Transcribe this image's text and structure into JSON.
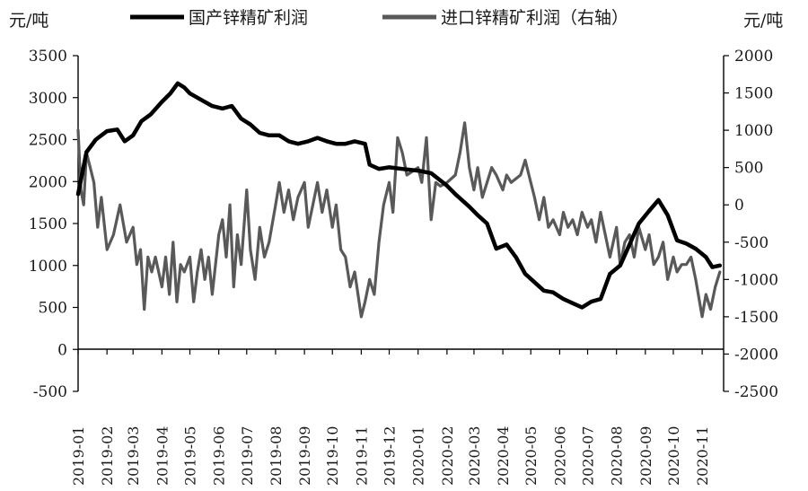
{
  "chart_data": {
    "type": "line",
    "title": "",
    "left_axis_unit": "元/吨",
    "right_axis_unit": "元/吨",
    "legend_position": "top",
    "grid": false,
    "colors": {
      "domestic": "#000000",
      "imported": "#595959",
      "axis": "#000000"
    },
    "y_left": {
      "min": -500,
      "max": 3500,
      "ticks": [
        "3500",
        "3000",
        "2500",
        "2000",
        "1500",
        "1000",
        "500",
        "0",
        "-500"
      ]
    },
    "y_right": {
      "min": -2500,
      "max": 2000,
      "ticks": [
        "2000",
        "1500",
        "1000",
        "500",
        "0",
        "-500",
        "-1000",
        "-1500",
        "-2000",
        "-2500"
      ]
    },
    "x_ticks": [
      "2019-01",
      "2019-02",
      "2019-03",
      "2019-04",
      "2019-05",
      "2019-06",
      "2019-07",
      "2019-08",
      "2019-09",
      "2019-10",
      "2019-11",
      "2019-12",
      "2020-01",
      "2020-02",
      "2020-03",
      "2020-04",
      "2020-05",
      "2020-06",
      "2020-07",
      "2020-08",
      "2020-09",
      "2020-10",
      "2020-11"
    ],
    "series": [
      {
        "name": "国产锌精矿利润",
        "axis": "left",
        "points": [
          [
            "2019-01-01",
            1850
          ],
          [
            "2019-01-10",
            2350
          ],
          [
            "2019-01-20",
            2500
          ],
          [
            "2019-02-01",
            2600
          ],
          [
            "2019-02-12",
            2620
          ],
          [
            "2019-02-20",
            2480
          ],
          [
            "2019-03-01",
            2550
          ],
          [
            "2019-03-10",
            2720
          ],
          [
            "2019-03-20",
            2800
          ],
          [
            "2019-04-01",
            2950
          ],
          [
            "2019-04-10",
            3050
          ],
          [
            "2019-04-18",
            3170
          ],
          [
            "2019-04-25",
            3120
          ],
          [
            "2019-05-01",
            3050
          ],
          [
            "2019-05-12",
            2980
          ],
          [
            "2019-05-25",
            2900
          ],
          [
            "2019-06-05",
            2870
          ],
          [
            "2019-06-15",
            2900
          ],
          [
            "2019-06-25",
            2750
          ],
          [
            "2019-07-05",
            2680
          ],
          [
            "2019-07-15",
            2580
          ],
          [
            "2019-07-25",
            2550
          ],
          [
            "2019-08-05",
            2550
          ],
          [
            "2019-08-15",
            2480
          ],
          [
            "2019-08-25",
            2450
          ],
          [
            "2019-09-05",
            2480
          ],
          [
            "2019-09-15",
            2520
          ],
          [
            "2019-09-25",
            2480
          ],
          [
            "2019-10-05",
            2450
          ],
          [
            "2019-10-15",
            2450
          ],
          [
            "2019-10-25",
            2480
          ],
          [
            "2019-11-05",
            2450
          ],
          [
            "2019-11-10",
            2200
          ],
          [
            "2019-11-20",
            2150
          ],
          [
            "2019-12-01",
            2170
          ],
          [
            "2019-12-15",
            2150
          ],
          [
            "2020-01-01",
            2130
          ],
          [
            "2020-01-15",
            2100
          ],
          [
            "2020-02-01",
            1950
          ],
          [
            "2020-02-10",
            1850
          ],
          [
            "2020-02-25",
            1700
          ],
          [
            "2020-03-05",
            1600
          ],
          [
            "2020-03-15",
            1500
          ],
          [
            "2020-03-25",
            1200
          ],
          [
            "2020-04-05",
            1250
          ],
          [
            "2020-04-15",
            1100
          ],
          [
            "2020-04-25",
            900
          ],
          [
            "2020-05-05",
            800
          ],
          [
            "2020-05-15",
            700
          ],
          [
            "2020-05-25",
            680
          ],
          [
            "2020-06-05",
            600
          ],
          [
            "2020-06-15",
            550
          ],
          [
            "2020-06-25",
            500
          ],
          [
            "2020-07-05",
            570
          ],
          [
            "2020-07-15",
            600
          ],
          [
            "2020-07-25",
            900
          ],
          [
            "2020-08-05",
            1000
          ],
          [
            "2020-08-15",
            1250
          ],
          [
            "2020-08-25",
            1500
          ],
          [
            "2020-09-05",
            1650
          ],
          [
            "2020-09-15",
            1780
          ],
          [
            "2020-09-25",
            1600
          ],
          [
            "2020-10-05",
            1300
          ],
          [
            "2020-10-15",
            1260
          ],
          [
            "2020-10-25",
            1200
          ],
          [
            "2020-11-05",
            1100
          ],
          [
            "2020-11-12",
            980
          ],
          [
            "2020-11-20",
            1000
          ]
        ]
      },
      {
        "name": "进口锌精矿利润（右轴）",
        "axis": "right",
        "points": [
          [
            "2019-01-01",
            1000
          ],
          [
            "2019-01-04",
            200
          ],
          [
            "2019-01-07",
            0
          ],
          [
            "2019-01-10",
            700
          ],
          [
            "2019-01-14",
            500
          ],
          [
            "2019-01-18",
            300
          ],
          [
            "2019-01-22",
            -300
          ],
          [
            "2019-01-26",
            100
          ],
          [
            "2019-02-01",
            -600
          ],
          [
            "2019-02-08",
            -400
          ],
          [
            "2019-02-15",
            0
          ],
          [
            "2019-02-22",
            -500
          ],
          [
            "2019-03-01",
            -300
          ],
          [
            "2019-03-05",
            -800
          ],
          [
            "2019-03-09",
            -600
          ],
          [
            "2019-03-13",
            -1400
          ],
          [
            "2019-03-17",
            -700
          ],
          [
            "2019-03-21",
            -900
          ],
          [
            "2019-03-25",
            -700
          ],
          [
            "2019-04-01",
            -1100
          ],
          [
            "2019-04-05",
            -700
          ],
          [
            "2019-04-09",
            -1200
          ],
          [
            "2019-04-13",
            -500
          ],
          [
            "2019-04-17",
            -1300
          ],
          [
            "2019-04-21",
            -800
          ],
          [
            "2019-04-25",
            -900
          ],
          [
            "2019-05-01",
            -700
          ],
          [
            "2019-05-05",
            -1300
          ],
          [
            "2019-05-09",
            -900
          ],
          [
            "2019-05-13",
            -600
          ],
          [
            "2019-05-17",
            -1000
          ],
          [
            "2019-05-21",
            -700
          ],
          [
            "2019-05-25",
            -1200
          ],
          [
            "2019-06-01",
            -400
          ],
          [
            "2019-06-05",
            -200
          ],
          [
            "2019-06-09",
            -700
          ],
          [
            "2019-06-13",
            0
          ],
          [
            "2019-06-17",
            -1100
          ],
          [
            "2019-06-21",
            -400
          ],
          [
            "2019-06-25",
            -800
          ],
          [
            "2019-07-01",
            200
          ],
          [
            "2019-07-05",
            -600
          ],
          [
            "2019-07-10",
            -1000
          ],
          [
            "2019-07-15",
            -300
          ],
          [
            "2019-07-20",
            -700
          ],
          [
            "2019-07-25",
            -500
          ],
          [
            "2019-08-01",
            0
          ],
          [
            "2019-08-05",
            300
          ],
          [
            "2019-08-10",
            -100
          ],
          [
            "2019-08-15",
            200
          ],
          [
            "2019-08-20",
            -200
          ],
          [
            "2019-08-25",
            100
          ],
          [
            "2019-09-01",
            300
          ],
          [
            "2019-09-05",
            -300
          ],
          [
            "2019-09-10",
            0
          ],
          [
            "2019-09-15",
            300
          ],
          [
            "2019-09-20",
            -100
          ],
          [
            "2019-09-25",
            200
          ],
          [
            "2019-10-01",
            -300
          ],
          [
            "2019-10-05",
            0
          ],
          [
            "2019-10-10",
            -600
          ],
          [
            "2019-10-15",
            -700
          ],
          [
            "2019-10-20",
            -1100
          ],
          [
            "2019-10-25",
            -900
          ],
          [
            "2019-11-01",
            -1500
          ],
          [
            "2019-11-05",
            -1300
          ],
          [
            "2019-11-10",
            -1000
          ],
          [
            "2019-11-15",
            -1200
          ],
          [
            "2019-11-20",
            -500
          ],
          [
            "2019-11-25",
            0
          ],
          [
            "2019-12-01",
            300
          ],
          [
            "2019-12-05",
            -100
          ],
          [
            "2019-12-10",
            900
          ],
          [
            "2019-12-15",
            700
          ],
          [
            "2019-12-20",
            400
          ],
          [
            "2020-01-01",
            500
          ],
          [
            "2020-01-05",
            300
          ],
          [
            "2020-01-10",
            900
          ],
          [
            "2020-01-15",
            -200
          ],
          [
            "2020-01-20",
            300
          ],
          [
            "2020-01-25",
            250
          ],
          [
            "2020-02-01",
            300
          ],
          [
            "2020-02-10",
            400
          ],
          [
            "2020-02-15",
            700
          ],
          [
            "2020-02-20",
            1100
          ],
          [
            "2020-02-25",
            500
          ],
          [
            "2020-03-01",
            200
          ],
          [
            "2020-03-05",
            500
          ],
          [
            "2020-03-10",
            100
          ],
          [
            "2020-03-15",
            300
          ],
          [
            "2020-03-20",
            500
          ],
          [
            "2020-03-25",
            400
          ],
          [
            "2020-04-01",
            200
          ],
          [
            "2020-04-05",
            400
          ],
          [
            "2020-04-10",
            300
          ],
          [
            "2020-04-15",
            350
          ],
          [
            "2020-04-20",
            400
          ],
          [
            "2020-04-25",
            600
          ],
          [
            "2020-05-01",
            300
          ],
          [
            "2020-05-05",
            100
          ],
          [
            "2020-05-10",
            -200
          ],
          [
            "2020-05-15",
            100
          ],
          [
            "2020-05-20",
            -300
          ],
          [
            "2020-05-25",
            -200
          ],
          [
            "2020-06-01",
            -400
          ],
          [
            "2020-06-05",
            -100
          ],
          [
            "2020-06-10",
            -300
          ],
          [
            "2020-06-15",
            -200
          ],
          [
            "2020-06-20",
            -400
          ],
          [
            "2020-06-25",
            -100
          ],
          [
            "2020-07-01",
            -300
          ],
          [
            "2020-07-05",
            -200
          ],
          [
            "2020-07-10",
            -500
          ],
          [
            "2020-07-15",
            -100
          ],
          [
            "2020-07-20",
            -400
          ],
          [
            "2020-07-25",
            -700
          ],
          [
            "2020-08-01",
            -300
          ],
          [
            "2020-08-05",
            -800
          ],
          [
            "2020-08-10",
            -500
          ],
          [
            "2020-08-15",
            -400
          ],
          [
            "2020-08-20",
            -700
          ],
          [
            "2020-08-25",
            -300
          ],
          [
            "2020-09-01",
            -600
          ],
          [
            "2020-09-05",
            -400
          ],
          [
            "2020-09-10",
            -800
          ],
          [
            "2020-09-15",
            -700
          ],
          [
            "2020-09-20",
            -500
          ],
          [
            "2020-09-25",
            -1000
          ],
          [
            "2020-10-01",
            -700
          ],
          [
            "2020-10-05",
            -900
          ],
          [
            "2020-10-10",
            -800
          ],
          [
            "2020-10-15",
            -800
          ],
          [
            "2020-10-20",
            -700
          ],
          [
            "2020-10-25",
            -1000
          ],
          [
            "2020-11-01",
            -1500
          ],
          [
            "2020-11-05",
            -1200
          ],
          [
            "2020-11-10",
            -1400
          ],
          [
            "2020-11-15",
            -1100
          ],
          [
            "2020-11-20",
            -900
          ]
        ]
      }
    ]
  }
}
